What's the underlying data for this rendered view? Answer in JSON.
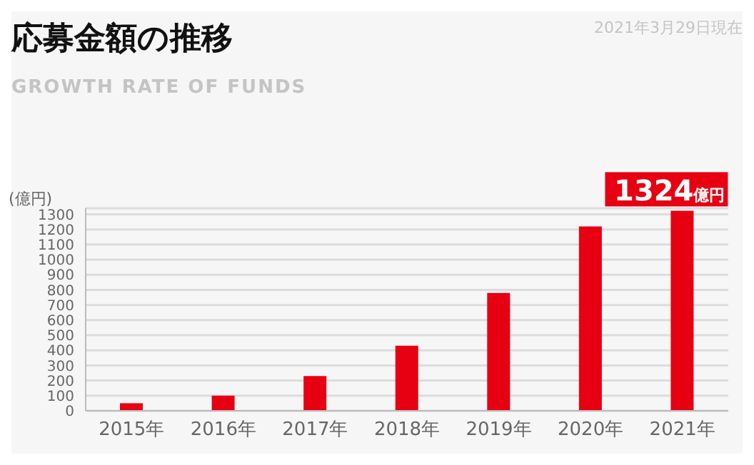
{
  "chart_data": {
    "type": "bar",
    "title": "応募金額の推移",
    "subtitle": "GROWTH RATE OF FUNDS",
    "ylabel": "(億円)",
    "annotations": [
      "2021年3月29日現在"
    ],
    "categories": [
      "2015年",
      "2016年",
      "2017年",
      "2018年",
      "2019年",
      "2020年",
      "2021年"
    ],
    "values": [
      50,
      100,
      230,
      430,
      780,
      1220,
      1324
    ],
    "value_labels": [
      null,
      null,
      null,
      null,
      null,
      null,
      "1324億円"
    ],
    "color": "#e60012",
    "ylim": [
      0,
      1340
    ],
    "yticks": [
      0,
      100,
      200,
      300,
      400,
      500,
      600,
      700,
      800,
      900,
      1000,
      1100,
      1200,
      1300
    ],
    "grid": "y",
    "legend": false
  }
}
